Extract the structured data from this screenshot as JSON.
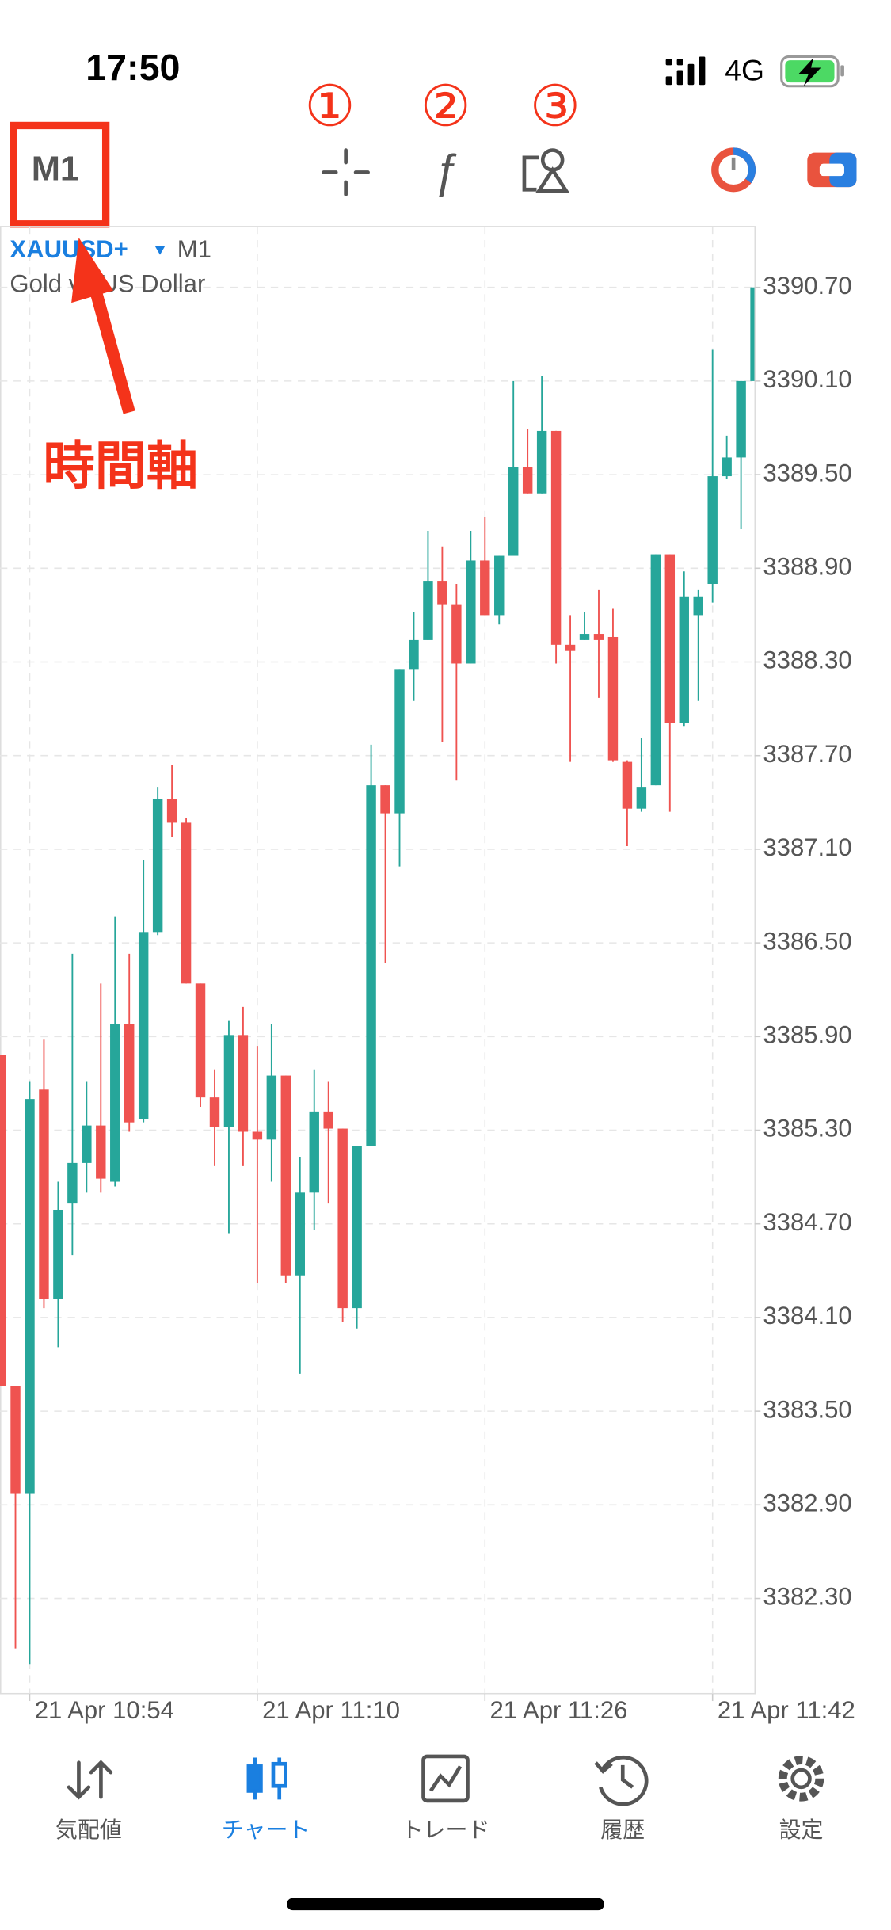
{
  "status_bar": {
    "time": "17:50",
    "network": "4G"
  },
  "toolbar": {
    "timeframe": "M1"
  },
  "annotations": {
    "markers": [
      "①",
      "②",
      "③"
    ],
    "label": "時間軸"
  },
  "chart_data": {
    "type": "candlestick",
    "symbol": "XAUUSD+",
    "timeframe": "M1",
    "description": "Gold vs US Dollar",
    "categories": [
      null,
      null,
      "21 Apr 10:54",
      null,
      null,
      null,
      null,
      null,
      null,
      null,
      null,
      null,
      null,
      null,
      null,
      null,
      null,
      null,
      "21 Apr 11:10",
      null,
      null,
      null,
      null,
      null,
      null,
      null,
      null,
      null,
      null,
      null,
      null,
      null,
      null,
      null,
      "21 Apr 11:26",
      null,
      null,
      null,
      null,
      null,
      null,
      null,
      null,
      null,
      null,
      null,
      null,
      null,
      null,
      null,
      "21 Apr 11:42",
      null,
      null,
      null
    ],
    "open": [
      3385.78,
      3383.66,
      3382.97,
      3385.56,
      3384.22,
      3384.83,
      3385.09,
      3385.33,
      3384.97,
      3385.98,
      3385.37,
      3386.57,
      3387.42,
      3387.27,
      3386.24,
      3385.51,
      3385.32,
      3385.91,
      3385.29,
      3385.24,
      3385.65,
      3384.37,
      3384.9,
      3385.42,
      3385.31,
      3384.16,
      3385.2,
      3387.51,
      3387.33,
      3388.25,
      3388.44,
      3388.82,
      3388.67,
      3388.29,
      3388.95,
      3388.6,
      3388.98,
      3389.55,
      3389.38,
      3389.78,
      3388.41,
      3388.44,
      3388.48,
      3388.46,
      3387.66,
      3387.36,
      3387.51,
      3388.99,
      3387.91,
      3388.6,
      3388.8,
      3389.49,
      3389.61,
      3390.1
    ],
    "high": [
      3385.78,
      3383.66,
      3385.61,
      3385.88,
      3384.97,
      3386.43,
      3385.61,
      3386.24,
      3386.67,
      3386.43,
      3387.03,
      3387.5,
      3387.64,
      3387.3,
      3386.24,
      3385.69,
      3386.0,
      3386.09,
      3385.84,
      3385.98,
      3385.65,
      3385.13,
      3385.69,
      3385.61,
      3385.31,
      3385.2,
      3387.77,
      3387.51,
      3388.25,
      3388.62,
      3389.14,
      3389.04,
      3388.8,
      3389.14,
      3389.23,
      3388.98,
      3390.1,
      3389.79,
      3390.13,
      3389.78,
      3388.6,
      3388.62,
      3388.76,
      3388.64,
      3387.67,
      3387.81,
      3388.99,
      3388.99,
      3388.88,
      3388.76,
      3390.3,
      3389.75,
      3390.1,
      3390.7
    ],
    "low": [
      3383.66,
      3381.98,
      3381.88,
      3384.16,
      3383.91,
      3384.5,
      3384.9,
      3384.9,
      3384.94,
      3385.29,
      3385.35,
      3386.55,
      3387.18,
      3386.24,
      3385.45,
      3385.07,
      3384.64,
      3385.07,
      3384.32,
      3384.97,
      3384.32,
      3383.74,
      3384.66,
      3384.83,
      3384.07,
      3384.03,
      3385.2,
      3386.37,
      3386.99,
      3388.05,
      3388.44,
      3387.79,
      3387.54,
      3388.29,
      3388.6,
      3388.54,
      3388.98,
      3389.38,
      3389.38,
      3388.29,
      3387.66,
      3388.44,
      3388.07,
      3387.66,
      3387.12,
      3387.34,
      3387.51,
      3387.34,
      3387.89,
      3388.05,
      3388.68,
      3389.47,
      3389.15,
      3390.1
    ],
    "close": [
      3383.66,
      3382.97,
      3385.5,
      3384.22,
      3384.79,
      3385.09,
      3385.33,
      3384.99,
      3385.98,
      3385.35,
      3386.57,
      3387.42,
      3387.27,
      3386.24,
      3385.51,
      3385.32,
      3385.91,
      3385.29,
      3385.24,
      3385.65,
      3384.37,
      3384.9,
      3385.42,
      3385.31,
      3384.16,
      3385.2,
      3387.51,
      3387.33,
      3388.25,
      3388.44,
      3388.82,
      3388.67,
      3388.29,
      3388.95,
      3388.6,
      3388.98,
      3389.55,
      3389.38,
      3389.78,
      3388.41,
      3388.37,
      3388.48,
      3388.44,
      3387.67,
      3387.36,
      3387.5,
      3388.99,
      3387.91,
      3388.72,
      3388.72,
      3389.49,
      3389.61,
      3390.1,
      3390.7
    ],
    "up_color": "#26a69a",
    "down_color": "#ef5350",
    "ylim": [
      3381.69,
      3391.09
    ],
    "yticks": [
      {
        "value": 3390.7,
        "label": "3390.70"
      },
      {
        "value": 3390.1,
        "label": "3390.10"
      },
      {
        "value": 3389.5,
        "label": "3389.50"
      },
      {
        "value": 3388.9,
        "label": "3388.90"
      },
      {
        "value": 3388.3,
        "label": "3388.30"
      },
      {
        "value": 3387.7,
        "label": "3387.70"
      },
      {
        "value": 3387.1,
        "label": "3387.10"
      },
      {
        "value": 3386.5,
        "label": "3386.50"
      },
      {
        "value": 3385.9,
        "label": "3385.90"
      },
      {
        "value": 3385.3,
        "label": "3385.30"
      },
      {
        "value": 3384.7,
        "label": "3384.70"
      },
      {
        "value": 3384.1,
        "label": "3384.10"
      },
      {
        "value": 3383.5,
        "label": "3383.50"
      },
      {
        "value": 3382.9,
        "label": "3382.90"
      },
      {
        "value": 3382.3,
        "label": "3382.30"
      }
    ],
    "grid": true
  },
  "tab_bar": {
    "items": [
      "気配値",
      "チャート",
      "トレード",
      "履歴",
      "設定"
    ]
  }
}
